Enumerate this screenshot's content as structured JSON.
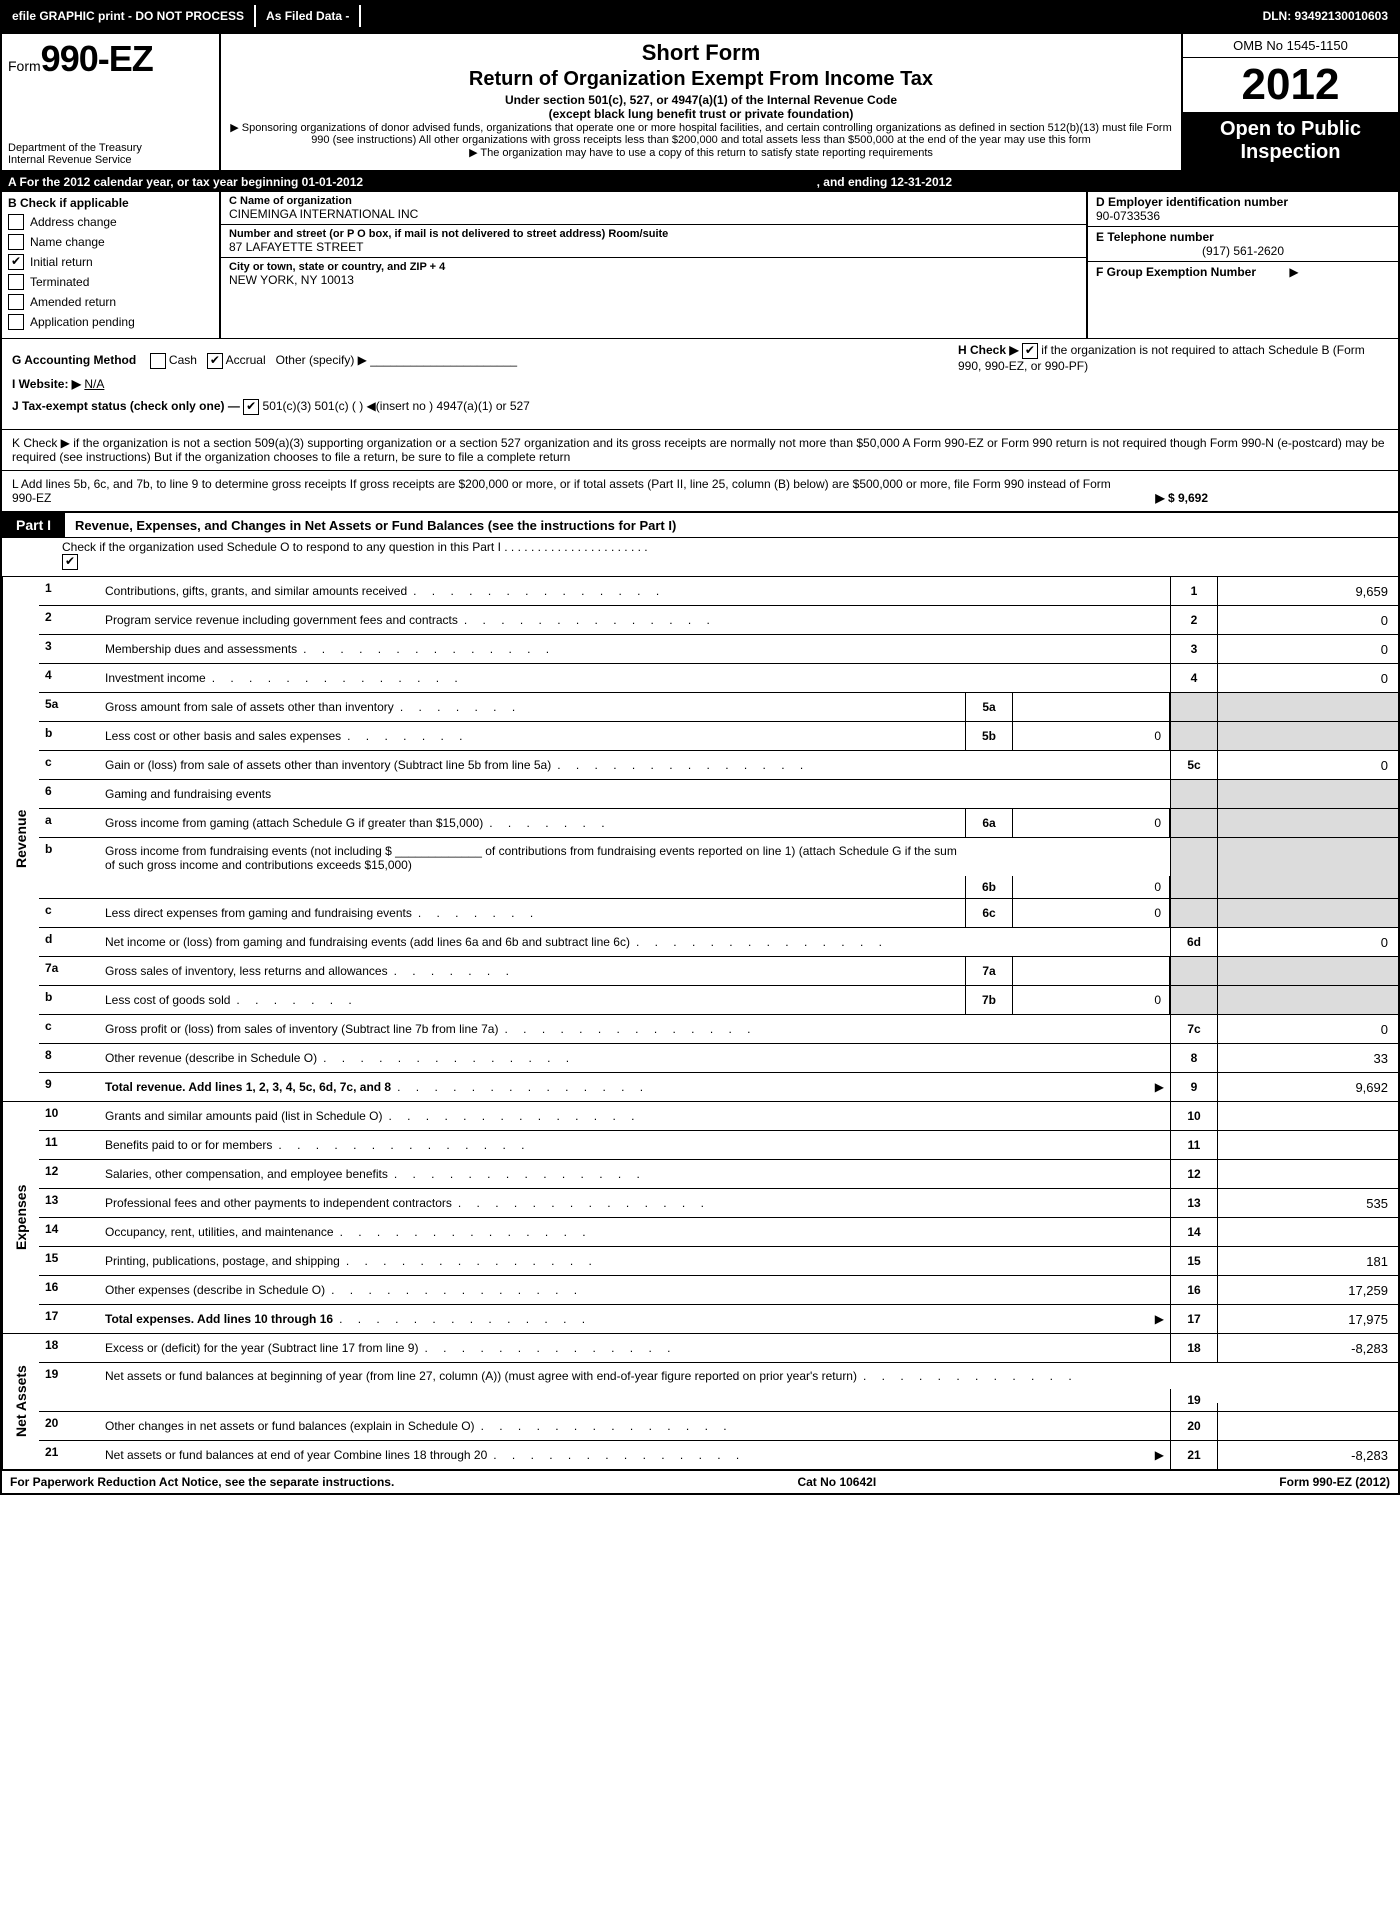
{
  "topbar": {
    "efile": "efile GRAPHIC print - DO NOT PROCESS",
    "asfiled": "As Filed Data -",
    "dln": "DLN: 93492130010603"
  },
  "header": {
    "form_word": "Form",
    "form_num": "990-EZ",
    "dept1": "Department of the Treasury",
    "dept2": "Internal Revenue Service",
    "short": "Short Form",
    "title": "Return of Organization Exempt From Income Tax",
    "sub1": "Under section 501(c), 527, or 4947(a)(1) of the Internal Revenue Code",
    "sub2": "(except black lung benefit trust or private foundation)",
    "note1": "▶ Sponsoring organizations of donor advised funds, organizations that operate one or more hospital facilities, and certain controlling organizations as defined in section 512(b)(13) must file Form 990 (see instructions) All other organizations with gross receipts less than $200,000 and total assets less than $500,000 at the end of the year may use this form",
    "note2": "▶ The organization may have to use a copy of this return to satisfy state reporting requirements",
    "omb": "OMB No 1545-1150",
    "year": "2012",
    "open1": "Open to Public",
    "open2": "Inspection"
  },
  "rowA": {
    "left": "A  For the 2012 calendar year, or tax year beginning 01-01-2012",
    "right": ", and ending 12-31-2012"
  },
  "B": {
    "title": "B  Check if applicable",
    "items": [
      "Address change",
      "Name change",
      "Initial return",
      "Terminated",
      "Amended return",
      "Application pending"
    ],
    "checked": 2
  },
  "C": {
    "label_name": "C Name of organization",
    "name": "CINEMINGA INTERNATIONAL INC",
    "label_street": "Number and street (or P O box, if mail is not delivered to street address) Room/suite",
    "street": "87 LAFAYETTE STREET",
    "label_city": "City or town, state or country, and ZIP + 4",
    "city": "NEW YORK, NY  10013"
  },
  "D": {
    "label": "D Employer identification number",
    "val": "90-0733536"
  },
  "E": {
    "label": "E Telephone number",
    "val": "(917) 561-2620"
  },
  "F": {
    "label": "F Group Exemption Number",
    "arrow": "▶"
  },
  "G": {
    "label": "G Accounting Method",
    "cash": "Cash",
    "accrual": "Accrual",
    "other": "Other (specify) ▶"
  },
  "H": {
    "text1": "H  Check ▶",
    "text2": "if the organization is not required to attach Schedule B (Form 990, 990-EZ, or 990-PF)"
  },
  "I": {
    "label": "I Website: ▶",
    "val": "N/A"
  },
  "J": {
    "label": "J Tax-exempt status (check only one) —",
    "opts": "501(c)(3)   501(c) (  ) ◀(insert no )   4947(a)(1) or   527"
  },
  "K": "K Check ▶   if the organization is not a section 509(a)(3) supporting organization or a section 527 organization and its gross receipts are normally not more than $50,000  A Form 990-EZ or Form 990 return is not required though Form 990-N (e-postcard) may be required (see instructions)  But if the organization chooses to file a return, be sure to file a complete return",
  "L": {
    "text": "L Add lines 5b, 6c, and 7b, to line 9 to determine gross receipts  If gross receipts are $200,000 or more, or if total assets (Part II, line 25, column (B) below) are $500,000 or more, file Form 990 instead of Form 990-EZ",
    "val": "▶ $ 9,692"
  },
  "partI": {
    "tab": "Part I",
    "title": "Revenue, Expenses, and Changes in Net Assets or Fund Balances (see the instructions for Part I)",
    "check": "Check if the organization used Schedule O to respond to any question in this Part I  .  .  .  .  .  .  .  .  .  .  .  .  .  .  .  .  .  .  .  .  .  ."
  },
  "sections": {
    "revenue_label": "Revenue",
    "expenses_label": "Expenses",
    "netassets_label": "Net Assets"
  },
  "lines": {
    "l1": {
      "n": "1",
      "d": "Contributions, gifts, grants, and similar amounts received",
      "c": "1",
      "v": "9,659"
    },
    "l2": {
      "n": "2",
      "d": "Program service revenue including government fees and contracts",
      "c": "2",
      "v": "0"
    },
    "l3": {
      "n": "3",
      "d": "Membership dues and assessments",
      "c": "3",
      "v": "0"
    },
    "l4": {
      "n": "4",
      "d": "Investment income",
      "c": "4",
      "v": "0"
    },
    "l5a": {
      "n": "5a",
      "d": "Gross amount from sale of assets other than inventory",
      "sc": "5a",
      "sv": ""
    },
    "l5b": {
      "n": "b",
      "d": "Less  cost or other basis and sales expenses",
      "sc": "5b",
      "sv": "0"
    },
    "l5c": {
      "n": "c",
      "d": "Gain or (loss) from sale of assets other than inventory (Subtract line 5b from line 5a)",
      "c": "5c",
      "v": "0"
    },
    "l6": {
      "n": "6",
      "d": "Gaming and fundraising events"
    },
    "l6a": {
      "n": "a",
      "d": "Gross income from gaming (attach Schedule G if greater than $15,000)",
      "sc": "6a",
      "sv": "0"
    },
    "l6b": {
      "n": "b",
      "d": "Gross income from fundraising events (not including $ _____________ of contributions from fundraising events reported on line 1) (attach Schedule G if the sum of such gross income and contributions exceeds $15,000)",
      "sc": "6b",
      "sv": "0"
    },
    "l6c": {
      "n": "c",
      "d": "Less  direct expenses from gaming and fundraising events",
      "sc": "6c",
      "sv": "0"
    },
    "l6d": {
      "n": "d",
      "d": "Net income or (loss) from gaming and fundraising events (add lines 6a and 6b and subtract line 6c)",
      "c": "6d",
      "v": "0"
    },
    "l7a": {
      "n": "7a",
      "d": "Gross sales of inventory, less returns and allowances",
      "sc": "7a",
      "sv": ""
    },
    "l7b": {
      "n": "b",
      "d": "Less  cost of goods sold",
      "sc": "7b",
      "sv": "0"
    },
    "l7c": {
      "n": "c",
      "d": "Gross profit or (loss) from sales of inventory (Subtract line 7b from line 7a)",
      "c": "7c",
      "v": "0"
    },
    "l8": {
      "n": "8",
      "d": "Other revenue (describe in Schedule O)",
      "c": "8",
      "v": "33"
    },
    "l9": {
      "n": "9",
      "d": "Total revenue. Add lines 1, 2, 3, 4, 5c, 6d, 7c, and 8",
      "c": "9",
      "v": "9,692",
      "bold": true,
      "arrow": true
    },
    "l10": {
      "n": "10",
      "d": "Grants and similar amounts paid (list in Schedule O)",
      "c": "10",
      "v": ""
    },
    "l11": {
      "n": "11",
      "d": "Benefits paid to or for members",
      "c": "11",
      "v": ""
    },
    "l12": {
      "n": "12",
      "d": "Salaries, other compensation, and employee benefits",
      "c": "12",
      "v": ""
    },
    "l13": {
      "n": "13",
      "d": "Professional fees and other payments to independent contractors",
      "c": "13",
      "v": "535"
    },
    "l14": {
      "n": "14",
      "d": "Occupancy, rent, utilities, and maintenance",
      "c": "14",
      "v": ""
    },
    "l15": {
      "n": "15",
      "d": "Printing, publications, postage, and shipping",
      "c": "15",
      "v": "181"
    },
    "l16": {
      "n": "16",
      "d": "Other expenses (describe in Schedule O)",
      "c": "16",
      "v": "17,259"
    },
    "l17": {
      "n": "17",
      "d": "Total expenses. Add lines 10 through 16",
      "c": "17",
      "v": "17,975",
      "bold": true,
      "arrow": true
    },
    "l18": {
      "n": "18",
      "d": "Excess or (deficit) for the year (Subtract line 17 from line 9)",
      "c": "18",
      "v": "-8,283"
    },
    "l19": {
      "n": "19",
      "d": "Net assets or fund balances at beginning of year (from line 27, column (A)) (must agree with end-of-year figure reported on prior year's return)",
      "c": "19",
      "v": ""
    },
    "l20": {
      "n": "20",
      "d": "Other changes in net assets or fund balances (explain in Schedule O)",
      "c": "20",
      "v": ""
    },
    "l21": {
      "n": "21",
      "d": "Net assets or fund balances at end of year  Combine lines 18 through 20",
      "c": "21",
      "v": "-8,283",
      "arrow": true
    }
  },
  "footer": {
    "left": "For Paperwork Reduction Act Notice, see the separate instructions.",
    "mid": "Cat No 10642I",
    "right": "Form 990-EZ (2012)"
  }
}
